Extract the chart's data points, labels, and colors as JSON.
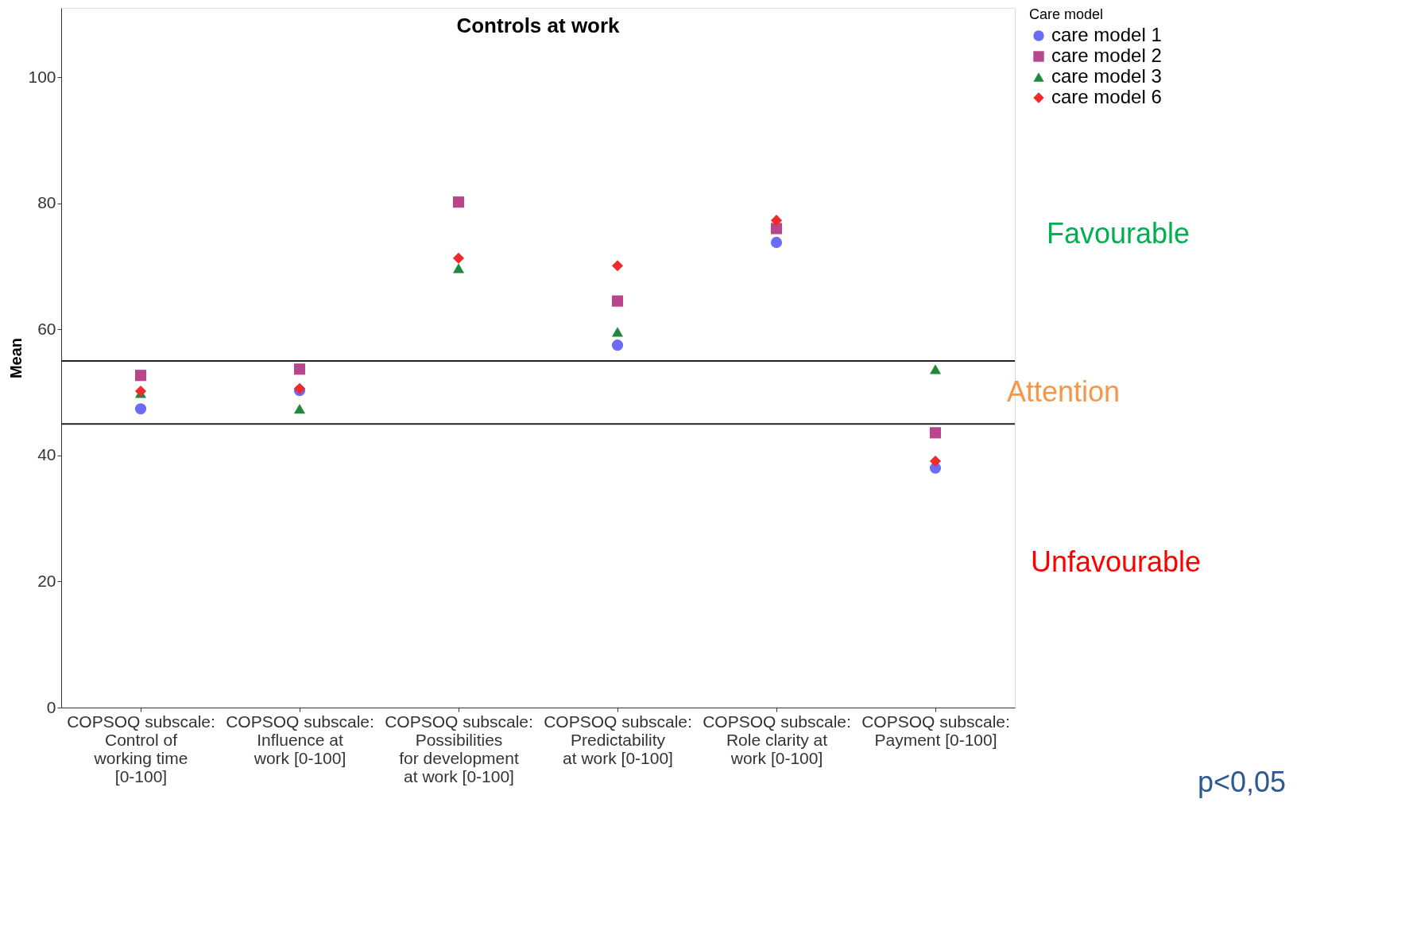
{
  "chart_data": {
    "type": "scatter",
    "title": "Controls at work",
    "ylabel": "Mean",
    "legend_title": "Care model",
    "categories": [
      "COPSOQ subscale: Control of working time [0-100]",
      "COPSOQ subscale: Influence at work [0-100]",
      "COPSOQ subscale: Possibilities for development at work [0-100]",
      "COPSOQ subscale: Predictability at work [0-100]",
      "COPSOQ subscale: Role clarity at work [0-100]",
      "COPSOQ subscale: Payment [0-100]"
    ],
    "series": [
      {
        "name": "care model 1",
        "color": "#6b6bf5",
        "marker": "circle",
        "values": [
          47.4,
          50.3,
          null,
          57.5,
          73.8,
          38.0
        ]
      },
      {
        "name": "care model 2",
        "color": "#b8468a",
        "marker": "square",
        "values": [
          52.7,
          53.7,
          80.2,
          64.5,
          76.0,
          43.6
        ]
      },
      {
        "name": "care model 3",
        "color": "#1f8a3c",
        "marker": "triangle",
        "values": [
          49.9,
          47.4,
          69.7,
          59.6,
          null,
          53.7
        ]
      },
      {
        "name": "care model 6",
        "color": "#ee2a2a",
        "marker": "diamond",
        "values": [
          50.2,
          50.6,
          71.3,
          70.1,
          77.3,
          39.1
        ]
      }
    ],
    "ylim": [
      0,
      111
    ],
    "yticks": [
      0,
      20,
      40,
      60,
      80,
      100
    ],
    "grid": false,
    "legend": "top right",
    "ref_lines": [
      {
        "axis": "y",
        "value": 55,
        "color": "#222222"
      },
      {
        "axis": "y",
        "value": 45,
        "color": "#222222"
      }
    ],
    "annotations": [
      "Favourable",
      "Attention",
      "Unfavourable",
      "p<0,05"
    ]
  }
}
